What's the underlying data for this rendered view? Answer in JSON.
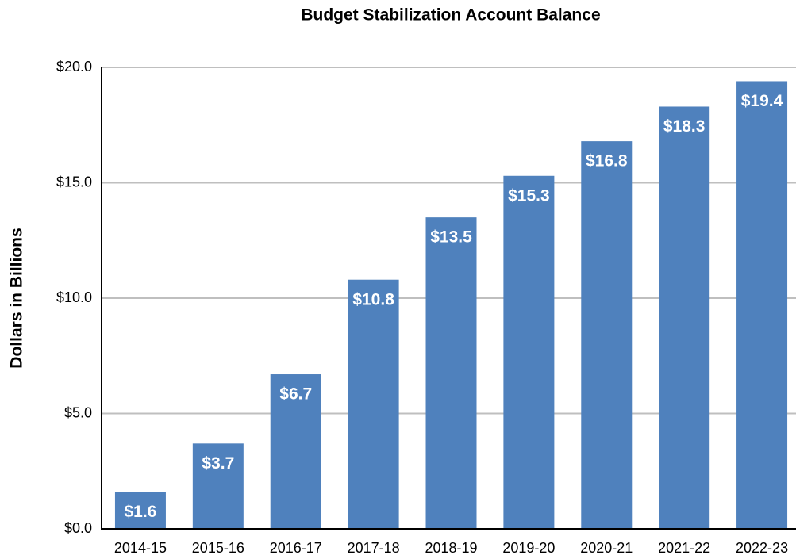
{
  "chart_data": {
    "type": "bar",
    "title": "Budget Stabilization Account Balance",
    "y_label": "Dollars in Billions",
    "categories": [
      "2014-15",
      "2015-16",
      "2016-17",
      "2017-18",
      "2018-19",
      "2019-20",
      "2020-21",
      "2021-22",
      "2022-23"
    ],
    "values": [
      1.6,
      3.7,
      6.7,
      10.8,
      13.5,
      15.3,
      16.8,
      18.3,
      19.4
    ],
    "value_labels": [
      "$1.6",
      "$3.7",
      "$6.7",
      "$10.8",
      "$13.5",
      "$15.3",
      "$16.8",
      "$18.3",
      "$19.4"
    ],
    "color": "#4f81bd",
    "ylim": [
      0,
      20
    ],
    "yticks": [
      {
        "value": 0,
        "label": "$0.0"
      },
      {
        "value": 5,
        "label": "$5.0"
      },
      {
        "value": 10,
        "label": "$10.0"
      },
      {
        "value": 15,
        "label": "$15.0"
      },
      {
        "value": 20,
        "label": "$20.0"
      }
    ],
    "grid": true
  }
}
